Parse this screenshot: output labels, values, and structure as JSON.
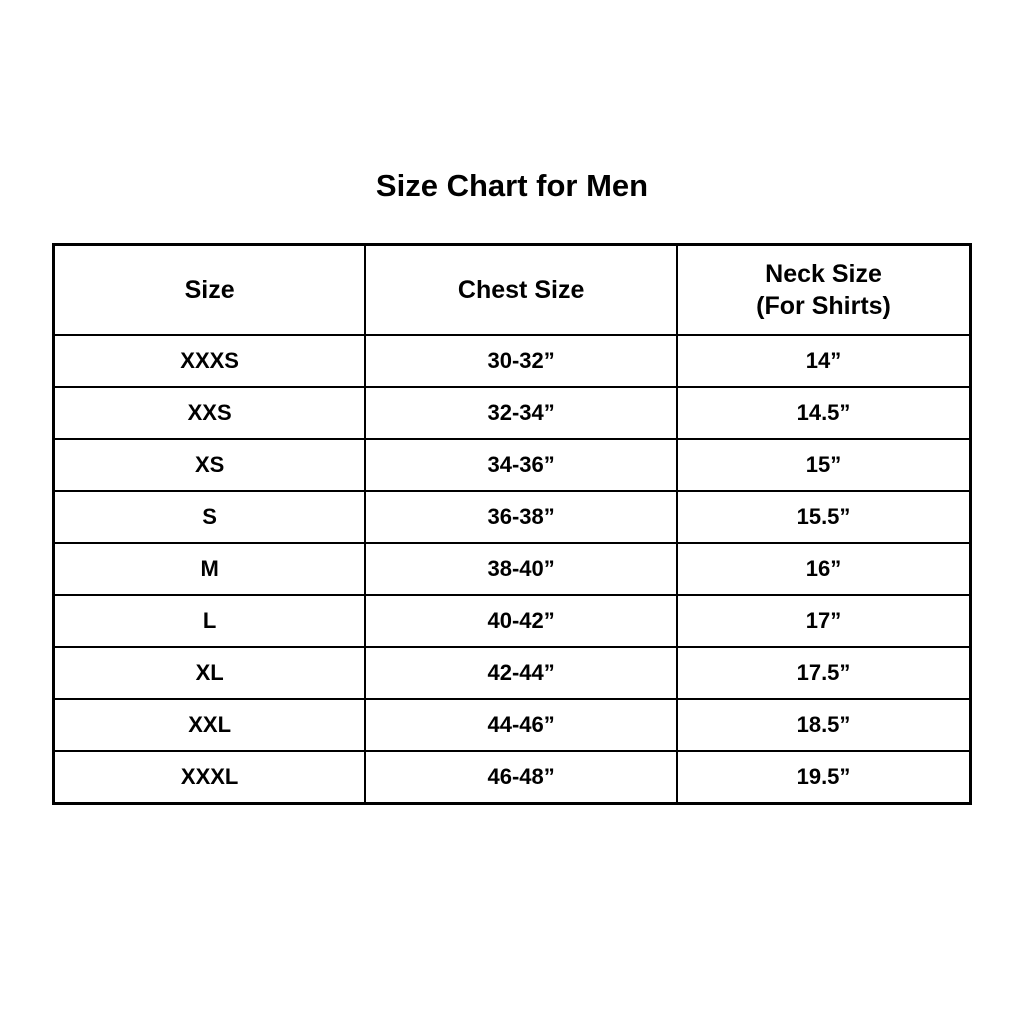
{
  "page": {
    "title": "Size Chart for Men",
    "background_color": "#ffffff",
    "text_color": "#000000",
    "border_color": "#000000"
  },
  "chart_data": {
    "type": "table",
    "title": "Size Chart for Men",
    "headers": [
      "Size",
      "Chest Size",
      "Neck Size\n(For Shirts)"
    ],
    "rows": [
      [
        "XXXS",
        "30-32”",
        "14”"
      ],
      [
        "XXS",
        "32-34”",
        "14.5”"
      ],
      [
        "XS",
        "34-36”",
        "15”"
      ],
      [
        "S",
        "36-38”",
        "15.5”"
      ],
      [
        "M",
        "38-40”",
        "16”"
      ],
      [
        "L",
        "40-42”",
        "17”"
      ],
      [
        "XL",
        "42-44”",
        "17.5”"
      ],
      [
        "XXL",
        "44-46”",
        "18.5”"
      ],
      [
        "XXXL",
        "46-48”",
        "19.5”"
      ]
    ]
  }
}
